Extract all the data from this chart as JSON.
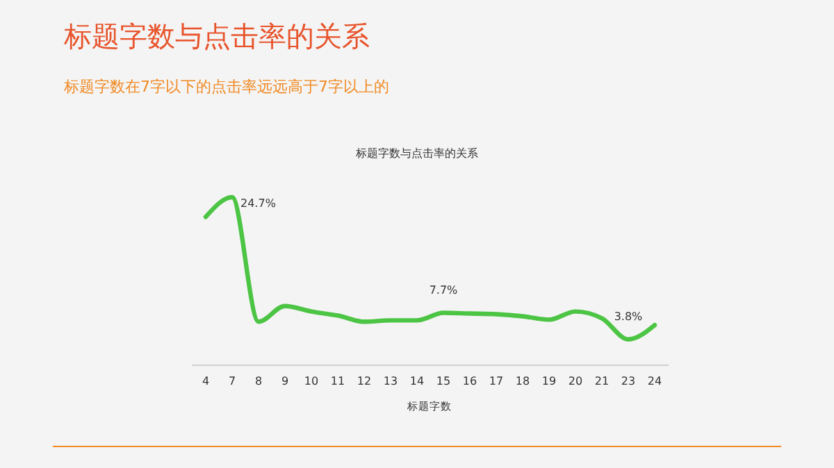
{
  "chart_data": {
    "type": "line",
    "title": "标题字数与点击率的关系",
    "subtitle": "标题字数在7字以下的点击率远远高于7字以上的",
    "annotations": [
      "标题字数与点击率的关系"
    ],
    "xlabel": "标题字数",
    "categories": [
      "4",
      "7",
      "8",
      "9",
      "10",
      "11",
      "12",
      "13",
      "14",
      "15",
      "16",
      "17",
      "18",
      "19",
      "20",
      "21",
      "23",
      "24"
    ],
    "series": [
      {
        "color": "#4cc444",
        "values": [
          21.8,
          24.7,
          6.4,
          8.7,
          7.9,
          7.3,
          6.4,
          6.6,
          6.6,
          7.7,
          7.6,
          7.5,
          7.2,
          6.7,
          7.9,
          6.9,
          3.8,
          5.9
        ],
        "value_labels": [
          null,
          "24.7%",
          null,
          null,
          null,
          null,
          null,
          null,
          null,
          "7.7%",
          null,
          null,
          null,
          null,
          null,
          null,
          "3.8%",
          null
        ]
      }
    ],
    "marker": "none",
    "line_style": "solid"
  }
}
